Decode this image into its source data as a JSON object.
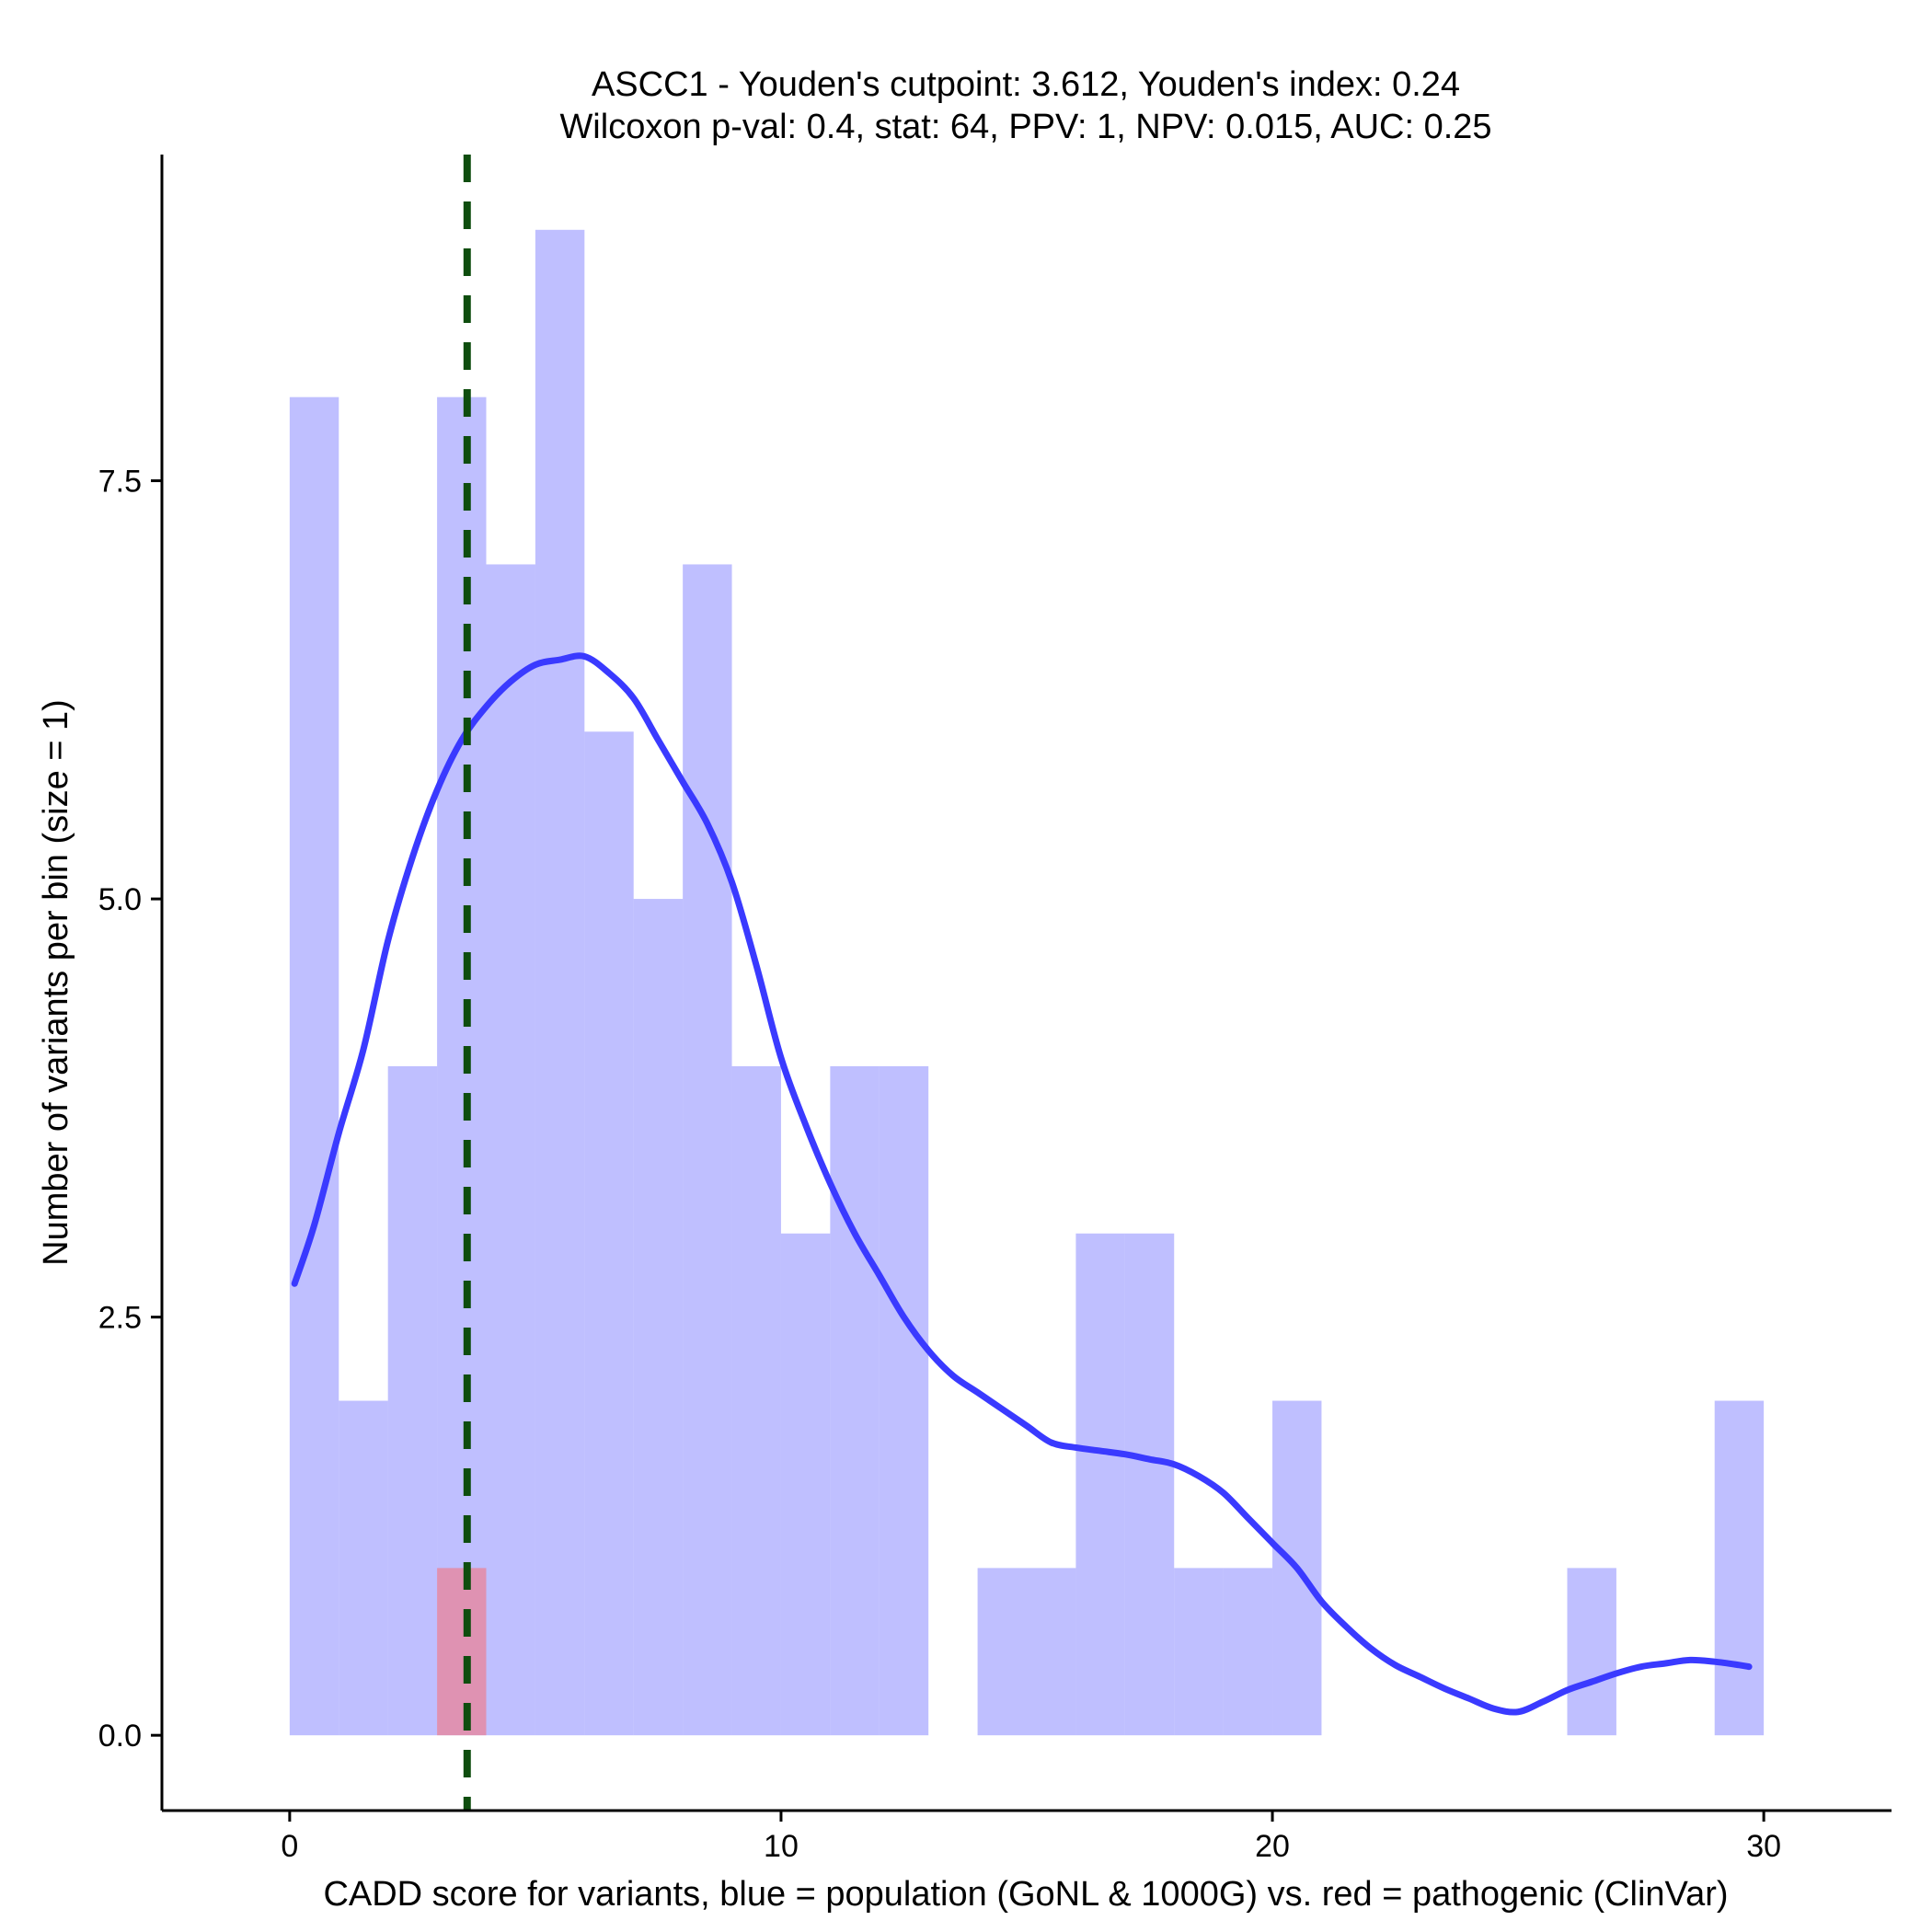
{
  "chart_data": {
    "type": "bar",
    "title_line1": "ASCC1 - Youden's cutpoint: 3.612, Youden's index: 0.24",
    "title_line2": "Wilcoxon p-val: 0.4, stat: 64, PPV: 1, NPV: 0.015, AUC: 0.25",
    "xlabel": "CADD score for variants, blue = population (GoNL & 1000G) vs. red = pathogenic (ClinVar)",
    "ylabel": "Number of variants per bin (size = 1)",
    "xlim": [
      -2.6,
      32.6
    ],
    "ylim": [
      -0.45,
      9.45
    ],
    "x_ticks": [
      0,
      10,
      20,
      30
    ],
    "x_tick_labels": [
      "0",
      "10",
      "20",
      "30"
    ],
    "y_ticks": [
      0,
      2.5,
      5,
      7.5
    ],
    "y_tick_labels": [
      "0.0",
      "2.5",
      "5.0",
      "7.5"
    ],
    "bin_width": 1,
    "series": [
      {
        "name": "population (GoNL & 1000G)",
        "color": "#8080ff",
        "opacity": 0.5,
        "bins": [
          {
            "x0": 0,
            "x1": 1,
            "count": 8
          },
          {
            "x0": 1,
            "x1": 2,
            "count": 2
          },
          {
            "x0": 2,
            "x1": 3,
            "count": 4
          },
          {
            "x0": 3,
            "x1": 4,
            "count": 8
          },
          {
            "x0": 4,
            "x1": 5,
            "count": 7
          },
          {
            "x0": 5,
            "x1": 6,
            "count": 9
          },
          {
            "x0": 6,
            "x1": 7,
            "count": 6
          },
          {
            "x0": 7,
            "x1": 8,
            "count": 5
          },
          {
            "x0": 8,
            "x1": 9,
            "count": 7
          },
          {
            "x0": 9,
            "x1": 10,
            "count": 4
          },
          {
            "x0": 10,
            "x1": 11,
            "count": 3
          },
          {
            "x0": 11,
            "x1": 12,
            "count": 4
          },
          {
            "x0": 12,
            "x1": 13,
            "count": 4
          },
          {
            "x0": 14,
            "x1": 15,
            "count": 1
          },
          {
            "x0": 15,
            "x1": 16,
            "count": 1
          },
          {
            "x0": 16,
            "x1": 17,
            "count": 3
          },
          {
            "x0": 17,
            "x1": 18,
            "count": 3
          },
          {
            "x0": 18,
            "x1": 19,
            "count": 1
          },
          {
            "x0": 19,
            "x1": 20,
            "count": 1
          },
          {
            "x0": 20,
            "x1": 21,
            "count": 2
          },
          {
            "x0": 26,
            "x1": 27,
            "count": 1
          },
          {
            "x0": 29,
            "x1": 30,
            "count": 2
          }
        ]
      },
      {
        "name": "pathogenic (ClinVar)",
        "color": "#ff6666",
        "opacity": 0.5,
        "bins": [
          {
            "x0": 3,
            "x1": 4,
            "count": 1
          }
        ]
      }
    ],
    "density_curve": {
      "color": "#3a3aff",
      "points": [
        [
          0.1,
          2.7
        ],
        [
          0.5,
          3.05
        ],
        [
          1.0,
          3.6
        ],
        [
          1.5,
          4.1
        ],
        [
          2.0,
          4.75
        ],
        [
          2.5,
          5.25
        ],
        [
          3.0,
          5.65
        ],
        [
          3.5,
          5.95
        ],
        [
          4.0,
          6.15
        ],
        [
          4.5,
          6.3
        ],
        [
          5.0,
          6.4
        ],
        [
          5.5,
          6.43
        ],
        [
          6.0,
          6.45
        ],
        [
          6.5,
          6.35
        ],
        [
          7.0,
          6.2
        ],
        [
          7.5,
          5.95
        ],
        [
          8.0,
          5.7
        ],
        [
          8.5,
          5.45
        ],
        [
          9.0,
          5.1
        ],
        [
          9.5,
          4.6
        ],
        [
          10.0,
          4.05
        ],
        [
          10.5,
          3.65
        ],
        [
          11.0,
          3.3
        ],
        [
          11.5,
          3.0
        ],
        [
          12.0,
          2.75
        ],
        [
          12.5,
          2.5
        ],
        [
          13.0,
          2.3
        ],
        [
          13.5,
          2.15
        ],
        [
          14.0,
          2.05
        ],
        [
          14.5,
          1.95
        ],
        [
          15.0,
          1.85
        ],
        [
          15.5,
          1.75
        ],
        [
          16.0,
          1.72
        ],
        [
          16.5,
          1.7
        ],
        [
          17.0,
          1.68
        ],
        [
          17.5,
          1.65
        ],
        [
          18.0,
          1.62
        ],
        [
          18.5,
          1.55
        ],
        [
          19.0,
          1.45
        ],
        [
          19.5,
          1.3
        ],
        [
          20.0,
          1.15
        ],
        [
          20.5,
          1.0
        ],
        [
          21.0,
          0.8
        ],
        [
          21.5,
          0.65
        ],
        [
          22.0,
          0.52
        ],
        [
          22.5,
          0.42
        ],
        [
          23.0,
          0.35
        ],
        [
          23.5,
          0.28
        ],
        [
          24.0,
          0.22
        ],
        [
          24.5,
          0.16
        ],
        [
          25.0,
          0.14
        ],
        [
          25.5,
          0.2
        ],
        [
          26.0,
          0.27
        ],
        [
          26.5,
          0.32
        ],
        [
          27.0,
          0.37
        ],
        [
          27.5,
          0.41
        ],
        [
          28.0,
          0.43
        ],
        [
          28.5,
          0.45
        ],
        [
          29.0,
          0.44
        ],
        [
          29.5,
          0.42
        ],
        [
          29.7,
          0.41
        ]
      ]
    },
    "cutpoint": {
      "value": 3.612,
      "color": "#0e4d0e",
      "style": "dashed"
    },
    "grid": false,
    "legend": "none"
  }
}
